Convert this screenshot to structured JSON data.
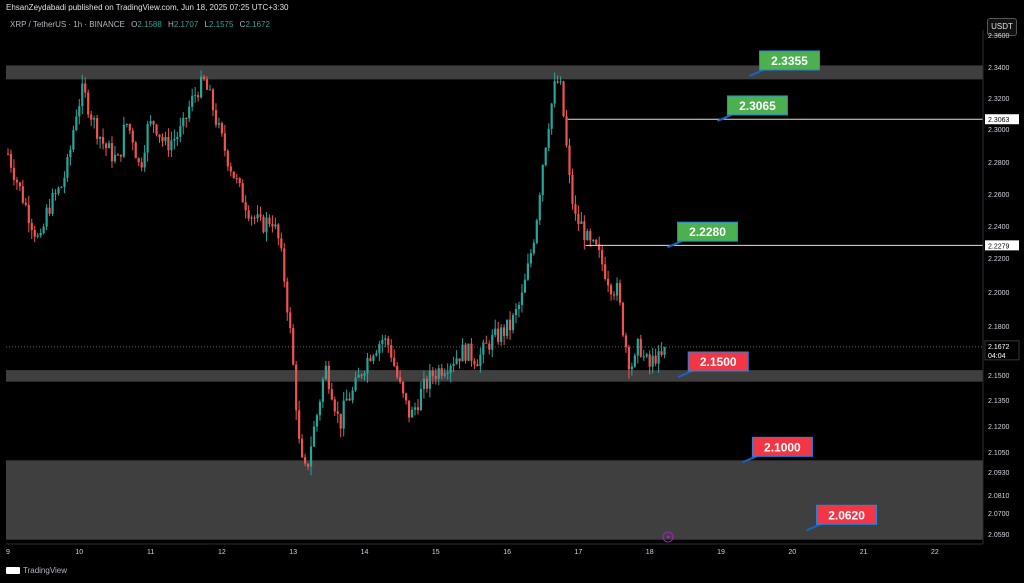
{
  "header": {
    "published_text": "EhsanZeydabadi published on TradingView.com, Jun 18, 2025 07:25 UTC+3:30"
  },
  "legend": {
    "symbol": "XRP / TetherUS · 1h · BINANCE",
    "open_label": "O",
    "open": "2.1588",
    "high_label": "H",
    "high": "2.1707",
    "low_label": "L",
    "low": "2.1575",
    "close_label": "C",
    "close": "2.1672"
  },
  "currency_button": "USDT",
  "footer": {
    "logo_text": "TradingView"
  },
  "colors": {
    "up": "#26a69a",
    "down": "#ef5350",
    "zone": "#4a4a4a",
    "green_label": "#4caf50",
    "red_label": "#f23645",
    "pointer": "#1565c0"
  },
  "chart_data": {
    "type": "candlestick",
    "symbol": "XRP / TetherUS",
    "interval": "1h",
    "exchange": "BINANCE",
    "y_axis": {
      "ticks": [
        "2.3600",
        "2.3400",
        "2.3200",
        "2.3000",
        "2.2800",
        "2.2600",
        "2.2400",
        "2.2200",
        "2.2000",
        "2.1800",
        "2.1500",
        "2.1350",
        "2.1200",
        "2.1050",
        "2.0930",
        "2.0810",
        "2.0700",
        "2.0590"
      ],
      "current_price": "2.1672",
      "countdown": "04:04",
      "line_labels": [
        "2.3063",
        "2.2279"
      ]
    },
    "x_axis": {
      "ticks": [
        "9",
        "10",
        "11",
        "12",
        "13",
        "14",
        "15",
        "16",
        "17",
        "18",
        "19",
        "20",
        "21",
        "22"
      ]
    },
    "current_price": 2.1672,
    "zones": [
      {
        "from": 2.332,
        "to": 2.341
      },
      {
        "from": 2.146,
        "to": 2.153
      },
      {
        "from": 2.056,
        "to": 2.1
      }
    ],
    "horizontal_lines": [
      {
        "value": 2.3063,
        "from_day": 16.85
      },
      {
        "value": 2.2279,
        "from_day": 17.1
      }
    ],
    "labels": [
      {
        "text": "2.3355",
        "type": "resistance",
        "value": 2.3355,
        "day": 19.4
      },
      {
        "text": "2.3065",
        "type": "resistance",
        "value": 2.3065,
        "day": 18.95
      },
      {
        "text": "2.2280",
        "type": "resistance",
        "value": 2.228,
        "day": 18.25
      },
      {
        "text": "2.1500",
        "type": "support",
        "value": 2.15,
        "day": 18.4
      },
      {
        "text": "2.1000",
        "type": "support",
        "value": 2.1,
        "day": 19.3
      },
      {
        "text": "2.0620",
        "type": "support",
        "value": 2.062,
        "day": 20.2
      }
    ],
    "price_path": [
      [
        9.0,
        2.285
      ],
      [
        9.15,
        2.265
      ],
      [
        9.35,
        2.24
      ],
      [
        9.45,
        2.228
      ],
      [
        9.55,
        2.25
      ],
      [
        9.65,
        2.258
      ],
      [
        9.75,
        2.265
      ],
      [
        9.85,
        2.28
      ],
      [
        9.95,
        2.31
      ],
      [
        10.05,
        2.325
      ],
      [
        10.2,
        2.305
      ],
      [
        10.35,
        2.29
      ],
      [
        10.55,
        2.28
      ],
      [
        10.65,
        2.305
      ],
      [
        10.75,
        2.295
      ],
      [
        10.85,
        2.275
      ],
      [
        10.95,
        2.3
      ],
      [
        11.05,
        2.305
      ],
      [
        11.2,
        2.29
      ],
      [
        11.35,
        2.295
      ],
      [
        11.45,
        2.3
      ],
      [
        11.55,
        2.315
      ],
      [
        11.65,
        2.325
      ],
      [
        11.75,
        2.33
      ],
      [
        11.85,
        2.318
      ],
      [
        11.95,
        2.3
      ],
      [
        12.1,
        2.28
      ],
      [
        12.25,
        2.262
      ],
      [
        12.4,
        2.248
      ],
      [
        12.55,
        2.24
      ],
      [
        12.7,
        2.245
      ],
      [
        12.8,
        2.23
      ],
      [
        12.87,
        2.21
      ],
      [
        12.95,
        2.18
      ],
      [
        13.03,
        2.14
      ],
      [
        13.1,
        2.1
      ],
      [
        13.18,
        2.092
      ],
      [
        13.25,
        2.11
      ],
      [
        13.35,
        2.13
      ],
      [
        13.45,
        2.155
      ],
      [
        13.55,
        2.14
      ],
      [
        13.65,
        2.12
      ],
      [
        13.75,
        2.135
      ],
      [
        13.85,
        2.14
      ],
      [
        13.95,
        2.152
      ],
      [
        14.1,
        2.165
      ],
      [
        14.25,
        2.172
      ],
      [
        14.35,
        2.168
      ],
      [
        14.45,
        2.15
      ],
      [
        14.55,
        2.135
      ],
      [
        14.65,
        2.125
      ],
      [
        14.8,
        2.14
      ],
      [
        14.95,
        2.15
      ],
      [
        15.1,
        2.155
      ],
      [
        15.25,
        2.16
      ],
      [
        15.4,
        2.165
      ],
      [
        15.5,
        2.162
      ],
      [
        15.6,
        2.16
      ],
      [
        15.75,
        2.17
      ],
      [
        15.9,
        2.175
      ],
      [
        16.05,
        2.18
      ],
      [
        16.2,
        2.195
      ],
      [
        16.3,
        2.215
      ],
      [
        16.4,
        2.24
      ],
      [
        16.5,
        2.28
      ],
      [
        16.6,
        2.31
      ],
      [
        16.68,
        2.33
      ],
      [
        16.74,
        2.33
      ],
      [
        16.8,
        2.305
      ],
      [
        16.87,
        2.27
      ],
      [
        16.95,
        2.245
      ],
      [
        17.05,
        2.24
      ],
      [
        17.15,
        2.228
      ],
      [
        17.25,
        2.225
      ],
      [
        17.35,
        2.215
      ],
      [
        17.45,
        2.205
      ],
      [
        17.55,
        2.2
      ],
      [
        17.62,
        2.18
      ],
      [
        17.7,
        2.16
      ],
      [
        17.78,
        2.155
      ],
      [
        17.85,
        2.17
      ],
      [
        17.92,
        2.16
      ],
      [
        18.0,
        2.155
      ],
      [
        18.08,
        2.162
      ],
      [
        18.15,
        2.158
      ],
      [
        18.22,
        2.1672
      ]
    ]
  }
}
